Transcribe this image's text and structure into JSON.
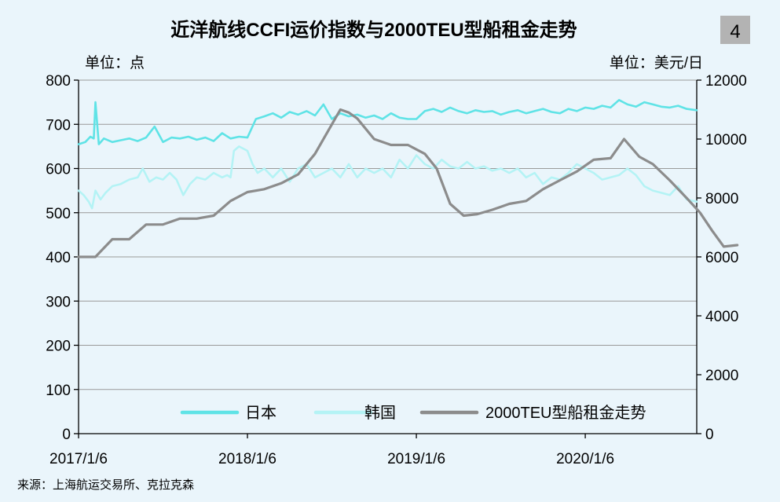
{
  "header": {
    "title": "近洋航线CCFI运价指数与2000TEU型船租金走势",
    "badge": "4",
    "left_unit": "单位：点",
    "right_unit": "单位：美元/日"
  },
  "source": "来源：上海航运交易所、克拉克森",
  "chart_data": {
    "type": "line",
    "title": "近洋航线CCFI运价指数与2000TEU型船租金走势",
    "y_left": {
      "label": "单位：点",
      "range": [
        0,
        800
      ],
      "ticks": [
        0,
        100,
        200,
        300,
        400,
        500,
        600,
        700,
        800
      ]
    },
    "y_right": {
      "label": "单位：美元/日",
      "range": [
        0,
        12000
      ],
      "ticks": [
        0,
        2000,
        4000,
        6000,
        8000,
        10000,
        12000
      ]
    },
    "x_axis": {
      "ticks": [
        "2017/1/6",
        "2018/1/6",
        "2019/1/6",
        "2020/1/6"
      ],
      "range_years": [
        2017.0,
        2020.66
      ]
    },
    "grid": "horizontal",
    "legend_position": "bottom-right",
    "series": [
      {
        "name": "日本",
        "axis": "left",
        "color": "#5fe3e6",
        "points": [
          [
            2017.0,
            655
          ],
          [
            2017.04,
            660
          ],
          [
            2017.07,
            672
          ],
          [
            2017.09,
            668
          ],
          [
            2017.1,
            750
          ],
          [
            2017.12,
            655
          ],
          [
            2017.15,
            668
          ],
          [
            2017.2,
            660
          ],
          [
            2017.25,
            664
          ],
          [
            2017.3,
            668
          ],
          [
            2017.35,
            662
          ],
          [
            2017.4,
            670
          ],
          [
            2017.45,
            695
          ],
          [
            2017.5,
            660
          ],
          [
            2017.55,
            670
          ],
          [
            2017.6,
            668
          ],
          [
            2017.65,
            672
          ],
          [
            2017.7,
            665
          ],
          [
            2017.75,
            670
          ],
          [
            2017.8,
            662
          ],
          [
            2017.85,
            680
          ],
          [
            2017.9,
            668
          ],
          [
            2017.95,
            672
          ],
          [
            2018.0,
            670
          ],
          [
            2018.05,
            712
          ],
          [
            2018.1,
            718
          ],
          [
            2018.15,
            725
          ],
          [
            2018.2,
            715
          ],
          [
            2018.25,
            728
          ],
          [
            2018.3,
            722
          ],
          [
            2018.35,
            730
          ],
          [
            2018.4,
            720
          ],
          [
            2018.45,
            745
          ],
          [
            2018.5,
            712
          ],
          [
            2018.55,
            725
          ],
          [
            2018.6,
            718
          ],
          [
            2018.65,
            722
          ],
          [
            2018.7,
            715
          ],
          [
            2018.75,
            720
          ],
          [
            2018.8,
            712
          ],
          [
            2018.85,
            725
          ],
          [
            2018.9,
            715
          ],
          [
            2018.95,
            712
          ],
          [
            2019.0,
            712
          ],
          [
            2019.05,
            730
          ],
          [
            2019.1,
            735
          ],
          [
            2019.15,
            728
          ],
          [
            2019.2,
            738
          ],
          [
            2019.25,
            730
          ],
          [
            2019.3,
            725
          ],
          [
            2019.35,
            732
          ],
          [
            2019.4,
            728
          ],
          [
            2019.45,
            730
          ],
          [
            2019.5,
            722
          ],
          [
            2019.55,
            728
          ],
          [
            2019.6,
            732
          ],
          [
            2019.65,
            725
          ],
          [
            2019.7,
            730
          ],
          [
            2019.75,
            735
          ],
          [
            2019.8,
            728
          ],
          [
            2019.85,
            725
          ],
          [
            2019.9,
            735
          ],
          [
            2019.95,
            730
          ],
          [
            2020.0,
            738
          ],
          [
            2020.05,
            735
          ],
          [
            2020.1,
            742
          ],
          [
            2020.15,
            738
          ],
          [
            2020.2,
            755
          ],
          [
            2020.25,
            745
          ],
          [
            2020.3,
            740
          ],
          [
            2020.35,
            750
          ],
          [
            2020.4,
            745
          ],
          [
            2020.45,
            740
          ],
          [
            2020.5,
            738
          ],
          [
            2020.55,
            742
          ],
          [
            2020.6,
            735
          ],
          [
            2020.66,
            732
          ]
        ]
      },
      {
        "name": "韩国",
        "axis": "left",
        "color": "#b4f3f5",
        "points": [
          [
            2017.0,
            550
          ],
          [
            2017.03,
            540
          ],
          [
            2017.06,
            525
          ],
          [
            2017.08,
            510
          ],
          [
            2017.1,
            550
          ],
          [
            2017.13,
            530
          ],
          [
            2017.16,
            545
          ],
          [
            2017.2,
            560
          ],
          [
            2017.25,
            565
          ],
          [
            2017.3,
            575
          ],
          [
            2017.35,
            580
          ],
          [
            2017.38,
            600
          ],
          [
            2017.42,
            570
          ],
          [
            2017.46,
            580
          ],
          [
            2017.5,
            575
          ],
          [
            2017.54,
            590
          ],
          [
            2017.58,
            575
          ],
          [
            2017.62,
            540
          ],
          [
            2017.66,
            565
          ],
          [
            2017.7,
            580
          ],
          [
            2017.75,
            575
          ],
          [
            2017.8,
            590
          ],
          [
            2017.85,
            580
          ],
          [
            2017.88,
            585
          ],
          [
            2017.9,
            580
          ],
          [
            2017.92,
            640
          ],
          [
            2017.95,
            650
          ],
          [
            2018.0,
            640
          ],
          [
            2018.03,
            610
          ],
          [
            2018.06,
            590
          ],
          [
            2018.1,
            600
          ],
          [
            2018.15,
            580
          ],
          [
            2018.2,
            600
          ],
          [
            2018.25,
            570
          ],
          [
            2018.3,
            600
          ],
          [
            2018.35,
            610
          ],
          [
            2018.4,
            580
          ],
          [
            2018.45,
            590
          ],
          [
            2018.5,
            600
          ],
          [
            2018.55,
            580
          ],
          [
            2018.6,
            610
          ],
          [
            2018.65,
            580
          ],
          [
            2018.7,
            600
          ],
          [
            2018.75,
            590
          ],
          [
            2018.8,
            600
          ],
          [
            2018.85,
            580
          ],
          [
            2018.9,
            620
          ],
          [
            2018.95,
            600
          ],
          [
            2019.0,
            630
          ],
          [
            2019.05,
            610
          ],
          [
            2019.1,
            600
          ],
          [
            2019.15,
            620
          ],
          [
            2019.2,
            605
          ],
          [
            2019.25,
            600
          ],
          [
            2019.3,
            615
          ],
          [
            2019.35,
            600
          ],
          [
            2019.4,
            605
          ],
          [
            2019.45,
            595
          ],
          [
            2019.5,
            600
          ],
          [
            2019.55,
            590
          ],
          [
            2019.6,
            600
          ],
          [
            2019.65,
            580
          ],
          [
            2019.7,
            590
          ],
          [
            2019.75,
            565
          ],
          [
            2019.8,
            580
          ],
          [
            2019.85,
            575
          ],
          [
            2019.9,
            590
          ],
          [
            2019.95,
            610
          ],
          [
            2020.0,
            600
          ],
          [
            2020.05,
            590
          ],
          [
            2020.1,
            575
          ],
          [
            2020.15,
            580
          ],
          [
            2020.2,
            585
          ],
          [
            2020.25,
            600
          ],
          [
            2020.3,
            585
          ],
          [
            2020.35,
            560
          ],
          [
            2020.4,
            550
          ],
          [
            2020.45,
            545
          ],
          [
            2020.5,
            540
          ],
          [
            2020.55,
            560
          ],
          [
            2020.6,
            530
          ],
          [
            2020.66,
            525
          ]
        ]
      },
      {
        "name": "2000TEU型船租金走势",
        "axis": "right",
        "color": "#8c8c8c",
        "points": [
          [
            2017.0,
            6000
          ],
          [
            2017.1,
            6000
          ],
          [
            2017.2,
            6600
          ],
          [
            2017.3,
            6600
          ],
          [
            2017.4,
            7100
          ],
          [
            2017.5,
            7100
          ],
          [
            2017.6,
            7300
          ],
          [
            2017.7,
            7300
          ],
          [
            2017.8,
            7400
          ],
          [
            2017.9,
            7900
          ],
          [
            2018.0,
            8200
          ],
          [
            2018.1,
            8300
          ],
          [
            2018.2,
            8500
          ],
          [
            2018.3,
            8800
          ],
          [
            2018.4,
            9500
          ],
          [
            2018.5,
            10500
          ],
          [
            2018.55,
            11000
          ],
          [
            2018.6,
            10900
          ],
          [
            2018.65,
            10700
          ],
          [
            2018.75,
            10000
          ],
          [
            2018.85,
            9800
          ],
          [
            2018.95,
            9800
          ],
          [
            2019.05,
            9500
          ],
          [
            2019.12,
            9000
          ],
          [
            2019.2,
            7800
          ],
          [
            2019.28,
            7400
          ],
          [
            2019.36,
            7450
          ],
          [
            2019.45,
            7600
          ],
          [
            2019.55,
            7800
          ],
          [
            2019.65,
            7900
          ],
          [
            2019.75,
            8300
          ],
          [
            2019.85,
            8600
          ],
          [
            2019.95,
            8900
          ],
          [
            2020.05,
            9300
          ],
          [
            2020.15,
            9350
          ],
          [
            2020.23,
            10000
          ],
          [
            2020.32,
            9400
          ],
          [
            2020.4,
            9150
          ],
          [
            2020.5,
            8600
          ],
          [
            2020.6,
            8000
          ],
          [
            2020.68,
            7500
          ],
          [
            2020.75,
            6900
          ],
          [
            2020.82,
            6350
          ],
          [
            2020.9,
            6400
          ]
        ]
      }
    ]
  }
}
